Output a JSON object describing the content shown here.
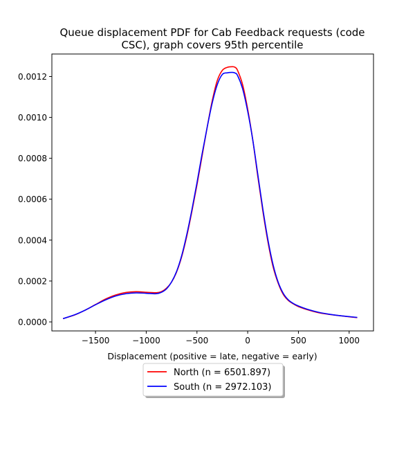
{
  "chart_data": {
    "type": "line",
    "title_line1": "Queue displacement PDF for Cab Feedback  requests (code",
    "title_line2": "CSC), graph covers 95th percentile",
    "xlabel": "Displacement (positive = late, negative = early)",
    "ylabel": "",
    "xlim": [
      -1930,
      1240
    ],
    "ylim": [
      -4.4e-05,
      0.00131
    ],
    "x_ticks": [
      -1500,
      -1000,
      -500,
      0,
      500,
      1000
    ],
    "x_tick_labels": [
      "−1500",
      "−1000",
      "−500",
      "0",
      "500",
      "1000"
    ],
    "y_ticks": [
      0.0,
      0.0002,
      0.0004,
      0.0006,
      0.0008,
      0.001,
      0.0012
    ],
    "y_tick_labels": [
      "0.0000",
      "0.0002",
      "0.0004",
      "0.0006",
      "0.0008",
      "0.0010",
      "0.0012"
    ],
    "grid": false,
    "legend_position": "below plot, centered",
    "series": [
      {
        "name": "North (n = 6501.897)",
        "color": "#ff0000",
        "x": [
          -1820,
          -1700,
          -1600,
          -1500,
          -1400,
          -1300,
          -1200,
          -1100,
          -1000,
          -900,
          -850,
          -800,
          -750,
          -700,
          -650,
          -600,
          -550,
          -500,
          -450,
          -400,
          -350,
          -300,
          -250,
          -200,
          -150,
          -125,
          -100,
          -50,
          0,
          50,
          100,
          150,
          200,
          250,
          300,
          350,
          400,
          450,
          500,
          600,
          700,
          800,
          900,
          1000,
          1080
        ],
        "y": [
          1.6e-05,
          3.5e-05,
          5.8e-05,
          8.5e-05,
          0.000112,
          0.000132,
          0.000144,
          0.000148,
          0.000145,
          0.000143,
          0.000148,
          0.000165,
          0.000195,
          0.000245,
          0.00032,
          0.00042,
          0.00054,
          0.00067,
          0.00081,
          0.00095,
          0.00108,
          0.00118,
          0.00123,
          0.001245,
          0.001248,
          0.001245,
          0.00123,
          0.00116,
          0.00104,
          0.00089,
          0.00071,
          0.00054,
          0.00039,
          0.00027,
          0.00019,
          0.000135,
          0.000105,
          8.8e-05,
          7.5e-05,
          5.8e-05,
          4.5e-05,
          3.7e-05,
          3.1e-05,
          2.5e-05,
          2.1e-05
        ]
      },
      {
        "name": "South (n = 2972.103)",
        "color": "#0000ff",
        "x": [
          -1820,
          -1700,
          -1600,
          -1500,
          -1400,
          -1300,
          -1200,
          -1100,
          -1000,
          -900,
          -850,
          -800,
          -750,
          -700,
          -650,
          -600,
          -550,
          -500,
          -450,
          -400,
          -350,
          -300,
          -250,
          -200,
          -150,
          -125,
          -100,
          -50,
          0,
          50,
          100,
          150,
          200,
          250,
          300,
          350,
          400,
          450,
          500,
          600,
          700,
          800,
          900,
          1000,
          1080
        ],
        "y": [
          1.6e-05,
          3.6e-05,
          5.8e-05,
          8.4e-05,
          0.000108,
          0.000127,
          0.000138,
          0.000142,
          0.00014,
          0.000138,
          0.000145,
          0.000162,
          0.000196,
          0.000248,
          0.000325,
          0.000428,
          0.000548,
          0.00068,
          0.00082,
          0.00095,
          0.00107,
          0.00116,
          0.00121,
          0.001218,
          0.00122,
          0.001217,
          0.001205,
          0.00114,
          0.00103,
          0.00089,
          0.00072,
          0.00055,
          0.0004,
          0.00028,
          0.000195,
          0.00014,
          0.000108,
          9e-05,
          7.8e-05,
          6e-05,
          4.7e-05,
          3.8e-05,
          3.1e-05,
          2.6e-05,
          2.2e-05
        ]
      }
    ]
  }
}
